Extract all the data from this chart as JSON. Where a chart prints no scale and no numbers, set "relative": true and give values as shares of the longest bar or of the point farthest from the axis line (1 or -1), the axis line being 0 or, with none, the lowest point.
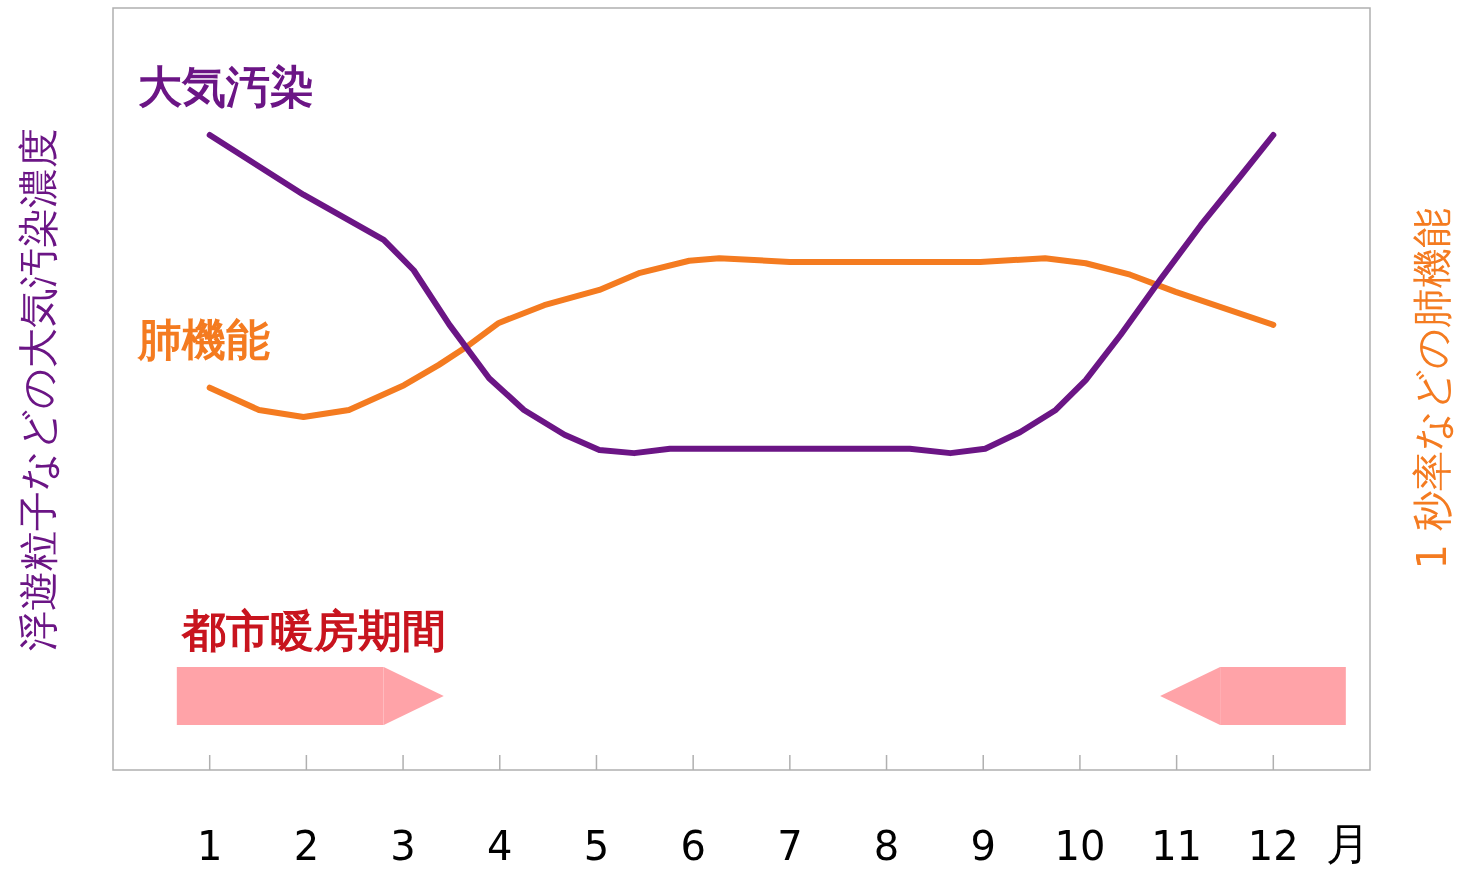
{
  "chart_data": {
    "type": "line",
    "relative": true,
    "xlabel": "月",
    "ylabel": "浮遊粒子などの大気汚染濃度",
    "y2label": "1 秒率などの肺機能",
    "xlim": [
      0,
      13
    ],
    "xticks": [
      1,
      2,
      3,
      4,
      5,
      6,
      7,
      8,
      9,
      10,
      11,
      12
    ],
    "grid": false,
    "legend": false,
    "marker": "none",
    "line_style": "solid",
    "series": [
      {
        "name": "大気汚染",
        "color": "#6b1585",
        "x": [
          1,
          1.97,
          2.8,
          3.11,
          3.48,
          3.89,
          4.25,
          4.67,
          5.03,
          5.39,
          5.76,
          8.24,
          8.66,
          9.02,
          9.38,
          9.75,
          10.06,
          10.42,
          10.83,
          11.25,
          11.67,
          12
        ],
        "values": [
          1,
          0.906,
          0.835,
          0.787,
          0.701,
          0.617,
          0.567,
          0.528,
          0.504,
          0.499,
          0.506,
          0.506,
          0.499,
          0.506,
          0.532,
          0.567,
          0.614,
          0.685,
          0.772,
          0.858,
          0.937,
          1
        ]
      },
      {
        "name": "肺機能",
        "color": "#f47b20",
        "x": [
          1,
          1.51,
          1.97,
          2.44,
          3.01,
          3.37,
          3.68,
          3.99,
          4.46,
          5.03,
          5.45,
          5.96,
          6.27,
          7,
          8.97,
          9.64,
          10.06,
          10.52,
          10.99,
          12
        ],
        "values": [
          0.602,
          0.567,
          0.556,
          0.567,
          0.606,
          0.638,
          0.669,
          0.704,
          0.732,
          0.756,
          0.783,
          0.802,
          0.806,
          0.8,
          0.8,
          0.806,
          0.798,
          0.78,
          0.753,
          0.701
        ]
      }
    ],
    "bands": [
      {
        "axis": "x",
        "from": 0.66,
        "to": 2.8,
        "label": "都市暖房期間",
        "color": "#ffa3a8"
      },
      {
        "axis": "x",
        "from": 11.45,
        "to": 12.75,
        "color": "#ffa3a8"
      }
    ]
  }
}
